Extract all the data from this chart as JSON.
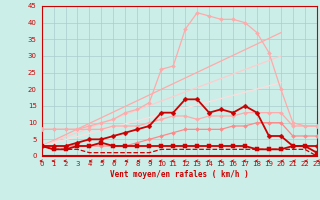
{
  "background_color": "#cceee8",
  "grid_color": "#aacccc",
  "xlabel": "Vent moyen/en rafales ( km/h )",
  "xlim": [
    0,
    23
  ],
  "ylim": [
    0,
    45
  ],
  "yticks": [
    0,
    5,
    10,
    15,
    20,
    25,
    30,
    35,
    40,
    45
  ],
  "xticks": [
    0,
    1,
    2,
    3,
    4,
    5,
    6,
    7,
    8,
    9,
    10,
    11,
    12,
    13,
    14,
    15,
    16,
    17,
    18,
    19,
    20,
    21,
    22,
    23
  ],
  "lines": [
    {
      "x": [
        0,
        1,
        2,
        3,
        4,
        5,
        6,
        7,
        8,
        9,
        10,
        11,
        12,
        13,
        14,
        15,
        16,
        17,
        18,
        19,
        20,
        21,
        22,
        23
      ],
      "y": [
        8,
        8,
        8,
        8,
        8,
        8,
        9,
        9,
        9,
        10,
        11,
        12,
        12,
        11,
        12,
        12,
        12,
        13,
        13,
        13,
        13,
        9,
        9,
        9
      ],
      "color": "#ffaaaa",
      "lw": 0.9,
      "marker": "D",
      "ms": 2.0,
      "zorder": 3
    },
    {
      "x": [
        0,
        1,
        2,
        3,
        4,
        5,
        6,
        7,
        8,
        9,
        10,
        11,
        12,
        13,
        14,
        15,
        16,
        17,
        18,
        19,
        20,
        21,
        22,
        23
      ],
      "y": [
        3,
        3,
        3,
        3,
        3,
        3,
        3,
        3,
        4,
        5,
        6,
        7,
        8,
        8,
        8,
        8,
        9,
        9,
        10,
        10,
        10,
        6,
        6,
        6
      ],
      "color": "#ff8888",
      "lw": 0.9,
      "marker": "D",
      "ms": 2.0,
      "zorder": 3
    },
    {
      "x": [
        0,
        20
      ],
      "y": [
        3,
        37
      ],
      "color": "#ffaaaa",
      "lw": 0.9,
      "marker": null,
      "ms": 0,
      "zorder": 2,
      "linestyle": "-"
    },
    {
      "x": [
        0,
        20
      ],
      "y": [
        3,
        30
      ],
      "color": "#ffcccc",
      "lw": 0.9,
      "marker": null,
      "ms": 0,
      "zorder": 2,
      "linestyle": "-"
    },
    {
      "x": [
        0,
        20
      ],
      "y": [
        3,
        22
      ],
      "color": "#ffdddd",
      "lw": 0.9,
      "marker": null,
      "ms": 0,
      "zorder": 2,
      "linestyle": "-"
    },
    {
      "x": [
        0,
        1,
        2,
        3,
        4,
        5,
        6,
        7,
        8,
        9,
        10,
        11,
        12,
        13,
        14,
        15,
        16,
        17,
        18,
        19,
        20,
        21,
        22,
        23
      ],
      "y": [
        3,
        3,
        3,
        4,
        5,
        5,
        6,
        7,
        8,
        9,
        13,
        13,
        17,
        17,
        13,
        14,
        13,
        15,
        13,
        6,
        6,
        3,
        3,
        3
      ],
      "color": "#cc0000",
      "lw": 1.3,
      "marker": "D",
      "ms": 2.5,
      "zorder": 4
    },
    {
      "x": [
        0,
        1,
        2,
        3,
        4,
        5,
        6,
        7,
        8,
        9,
        10,
        11,
        12,
        13,
        14,
        15,
        16,
        17,
        18,
        19,
        20,
        21,
        22,
        23
      ],
      "y": [
        3,
        2,
        2,
        3,
        3,
        4,
        3,
        3,
        3,
        3,
        3,
        3,
        3,
        3,
        3,
        3,
        3,
        3,
        2,
        2,
        2,
        3,
        3,
        1
      ],
      "color": "#cc0000",
      "lw": 1.3,
      "marker": "s",
      "ms": 2.5,
      "zorder": 4
    },
    {
      "x": [
        0,
        1,
        2,
        3,
        4,
        5,
        6,
        7,
        8,
        9,
        10,
        11,
        12,
        13,
        14,
        15,
        16,
        17,
        18,
        19,
        20,
        21,
        22,
        23
      ],
      "y": [
        3,
        2,
        2,
        2,
        1,
        1,
        1,
        1,
        1,
        1,
        2,
        2,
        2,
        2,
        2,
        2,
        2,
        2,
        2,
        2,
        2,
        2,
        2,
        0
      ],
      "color": "#cc0000",
      "lw": 0.9,
      "marker": null,
      "ms": 0,
      "zorder": 3,
      "linestyle": "--"
    },
    {
      "x": [
        0,
        1,
        2,
        3,
        4,
        5,
        6,
        7,
        8,
        9,
        10,
        11,
        12,
        13,
        14,
        15,
        16,
        17,
        18,
        19,
        20,
        21,
        22,
        23
      ],
      "y": [
        8,
        8,
        8,
        8,
        9,
        10,
        11,
        13,
        14,
        16,
        26,
        27,
        38,
        43,
        42,
        41,
        41,
        40,
        37,
        31,
        20,
        10,
        9,
        9
      ],
      "color": "#ffaaaa",
      "lw": 0.9,
      "marker": "D",
      "ms": 2.0,
      "zorder": 3
    }
  ],
  "wind_arrows": {
    "x": [
      0,
      1,
      2,
      3,
      4,
      5,
      6,
      7,
      8,
      9,
      10,
      11,
      12,
      13,
      14,
      15,
      16,
      17,
      18,
      19,
      20,
      21,
      22,
      23
    ],
    "angles": [
      225,
      210,
      225,
      180,
      270,
      270,
      270,
      270,
      270,
      270,
      315,
      315,
      315,
      315,
      315,
      315,
      315,
      315,
      315,
      315,
      270,
      270,
      270,
      270
    ]
  }
}
